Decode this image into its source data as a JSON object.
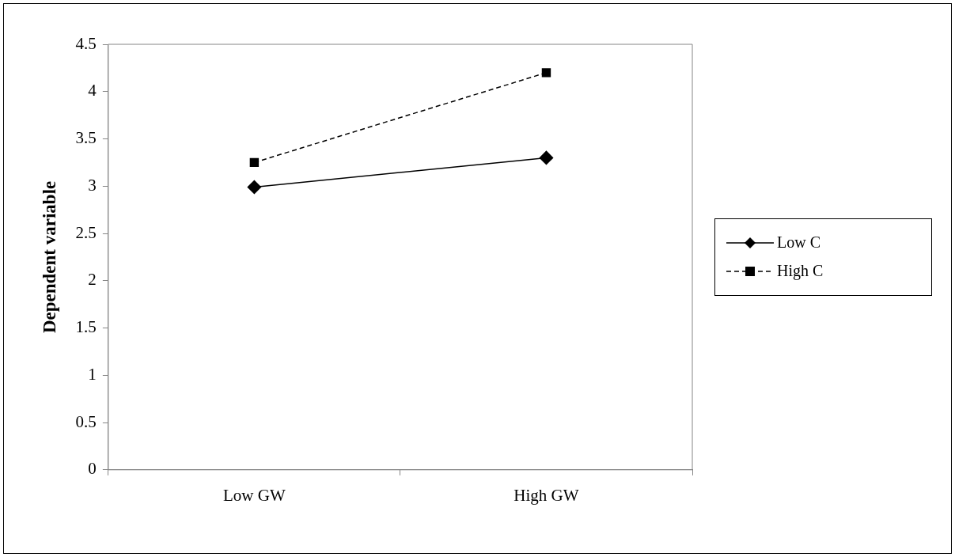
{
  "chart_data": {
    "type": "line",
    "ylabel": "Dependent variable",
    "categories": [
      "Low GW",
      "High GW"
    ],
    "series": [
      {
        "name": "Low C",
        "color": "#000000",
        "values": [
          2.99,
          3.3
        ],
        "marker": "diamond",
        "line_style": "solid"
      },
      {
        "name": "High C",
        "color": "#000000",
        "values": [
          3.25,
          4.2
        ],
        "marker": "square",
        "line_style": "dashed"
      }
    ],
    "ylim": [
      0,
      4.5
    ],
    "yticks": [
      0,
      0.5,
      1,
      1.5,
      2,
      2.5,
      3,
      3.5,
      4,
      4.5
    ],
    "grid": false,
    "legend": "right"
  }
}
